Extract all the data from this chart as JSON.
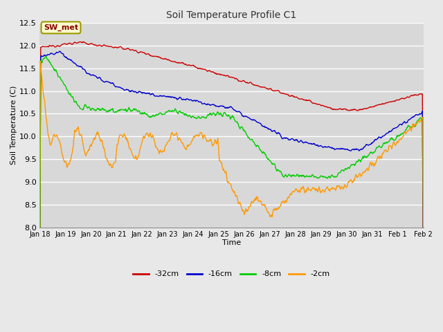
{
  "title": "Soil Temperature Profile C1",
  "xlabel": "Time",
  "ylabel": "Soil Temperature (C)",
  "ylim": [
    8.0,
    12.5
  ],
  "yticks": [
    8.0,
    8.5,
    9.0,
    9.5,
    10.0,
    10.5,
    11.0,
    11.5,
    12.0,
    12.5
  ],
  "fig_bg_color": "#e8e8e8",
  "plot_bg_color": "#d8d8d8",
  "grid_color": "#ffffff",
  "annotation_text": "SW_met",
  "annotation_bg": "#ffffcc",
  "annotation_border": "#999900",
  "annotation_text_color": "#880000",
  "series": [
    {
      "label": "-32cm",
      "color": "#cc0000"
    },
    {
      "label": "-16cm",
      "color": "#0000cc"
    },
    {
      "label": "-8cm",
      "color": "#00cc00"
    },
    {
      "label": "-2cm",
      "color": "#ff9900"
    }
  ],
  "n_points": 800,
  "start_day": 0,
  "end_day": 15,
  "xtick_pos": [
    0,
    1,
    2,
    3,
    4,
    5,
    6,
    7,
    8,
    9,
    10,
    11,
    12,
    13,
    14,
    15
  ],
  "xtick_labels": [
    "Jan 18",
    "Jan 19",
    "Jan 20",
    "Jan 21",
    "Jan 22",
    "Jan 23",
    "Jan 24",
    "Jan 25",
    "Jan 26",
    "Jan 27",
    "Jan 28",
    "Jan 29",
    "Jan 30",
    "Jan 31",
    "Feb 1",
    "Feb 2"
  ]
}
